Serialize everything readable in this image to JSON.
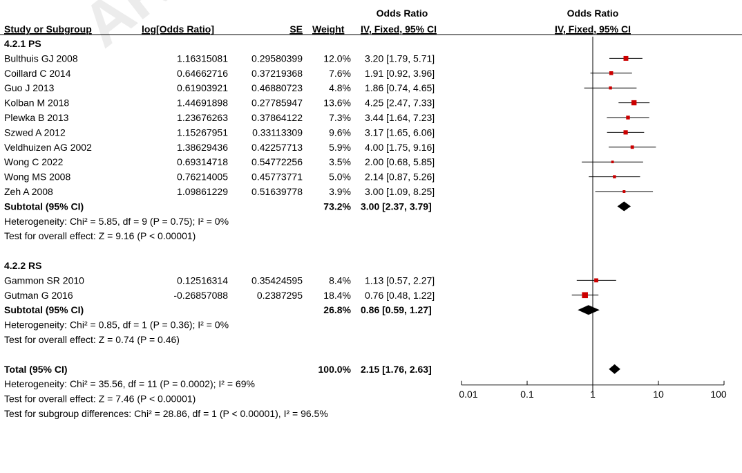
{
  "header": {
    "top_left": "Odds Ratio",
    "top_right": "Odds Ratio",
    "col_study": "Study or Subgroup",
    "col_log": "log[Odds Ratio]",
    "col_se": "SE",
    "col_weight": "Weight",
    "col_ci": "IV, Fixed, 95% CI",
    "col_plot": "IV, Fixed, 95% CI"
  },
  "colors": {
    "point": "#cc0000",
    "diamond": "#000000",
    "line": "#000000",
    "watermark": "#e5e5e5"
  },
  "watermark": "ARTICLE",
  "chart_data": {
    "type": "forest",
    "x_scale": "log",
    "xlim": [
      0.01,
      100
    ],
    "x_ticks": [
      "0.01",
      "0.1",
      "1",
      "10",
      "100"
    ],
    "x_tick_values": [
      0.01,
      0.1,
      1,
      10,
      100
    ],
    "null_line": 1,
    "groups": [
      {
        "title": "4.2.1 PS",
        "studies": [
          {
            "name": "Bulthuis GJ 2008",
            "log_or": "1.16315081",
            "se": "0.29580399",
            "weight": "12.0%",
            "ci_text": "3.20 [1.79, 5.71]",
            "or": 3.2,
            "lower": 1.79,
            "upper": 5.71
          },
          {
            "name": "Coillard C 2014",
            "log_or": "0.64662716",
            "se": "0.37219368",
            "weight": "7.6%",
            "ci_text": "1.91 [0.92, 3.96]",
            "or": 1.91,
            "lower": 0.92,
            "upper": 3.96
          },
          {
            "name": "Guo J 2013",
            "log_or": "0.61903921",
            "se": "0.46880723",
            "weight": "4.8%",
            "ci_text": "1.86 [0.74, 4.65]",
            "or": 1.86,
            "lower": 0.74,
            "upper": 4.65
          },
          {
            "name": "Kolban M 2018",
            "log_or": "1.44691898",
            "se": "0.27785947",
            "weight": "13.6%",
            "ci_text": "4.25 [2.47, 7.33]",
            "or": 4.25,
            "lower": 2.47,
            "upper": 7.33
          },
          {
            "name": "Plewka B 2013",
            "log_or": "1.23676263",
            "se": "0.37864122",
            "weight": "7.3%",
            "ci_text": "3.44 [1.64, 7.23]",
            "or": 3.44,
            "lower": 1.64,
            "upper": 7.23
          },
          {
            "name": "Szwed A 2012",
            "log_or": "1.15267951",
            "se": "0.33113309",
            "weight": "9.6%",
            "ci_text": "3.17 [1.65, 6.06]",
            "or": 3.17,
            "lower": 1.65,
            "upper": 6.06
          },
          {
            "name": "Veldhuizen AG 2002",
            "log_or": "1.38629436",
            "se": "0.42257713",
            "weight": "5.9%",
            "ci_text": "4.00 [1.75, 9.16]",
            "or": 4.0,
            "lower": 1.75,
            "upper": 9.16
          },
          {
            "name": "Wong C 2022",
            "log_or": "0.69314718",
            "se": "0.54772256",
            "weight": "3.5%",
            "ci_text": "2.00 [0.68, 5.85]",
            "or": 2.0,
            "lower": 0.68,
            "upper": 5.85
          },
          {
            "name": "Wong MS 2008",
            "log_or": "0.76214005",
            "se": "0.45773771",
            "weight": "5.0%",
            "ci_text": "2.14 [0.87, 5.26]",
            "or": 2.14,
            "lower": 0.87,
            "upper": 5.26
          },
          {
            "name": "Zeh A 2008",
            "log_or": "1.09861229",
            "se": "0.51639778",
            "weight": "3.9%",
            "ci_text": "3.00 [1.09, 8.25]",
            "or": 3.0,
            "lower": 1.09,
            "upper": 8.25
          }
        ],
        "subtotal": {
          "label": "Subtotal (95% CI)",
          "weight": "73.2%",
          "ci_text": "3.00 [2.37, 3.79]",
          "or": 3.0,
          "lower": 2.37,
          "upper": 3.79
        },
        "heterogeneity": "Heterogeneity: Chi² = 5.85, df = 9 (P = 0.75); I² = 0%",
        "overall": "Test for overall effect: Z = 9.16 (P < 0.00001)"
      },
      {
        "title": "4.2.2 RS",
        "studies": [
          {
            "name": "Gammon SR 2010",
            "log_or": "0.12516314",
            "se": "0.35424595",
            "weight": "8.4%",
            "ci_text": "1.13 [0.57, 2.27]",
            "or": 1.13,
            "lower": 0.57,
            "upper": 2.27
          },
          {
            "name": "Gutman G 2016",
            "log_or": "-0.26857088",
            "se": "0.2387295",
            "weight": "18.4%",
            "ci_text": "0.76 [0.48, 1.22]",
            "or": 0.76,
            "lower": 0.48,
            "upper": 1.22
          }
        ],
        "subtotal": {
          "label": "Subtotal (95% CI)",
          "weight": "26.8%",
          "ci_text": "0.86 [0.59, 1.27]",
          "or": 0.86,
          "lower": 0.59,
          "upper": 1.27
        },
        "heterogeneity": "Heterogeneity: Chi² = 0.85, df = 1 (P = 0.36); I² = 0%",
        "overall": "Test for overall effect: Z = 0.74 (P = 0.46)"
      }
    ],
    "total": {
      "label": "Total (95% CI)",
      "weight": "100.0%",
      "ci_text": "2.15 [1.76, 2.63]",
      "or": 2.15,
      "lower": 1.76,
      "upper": 2.63
    },
    "footer": [
      "Heterogeneity: Chi² = 35.56, df = 11 (P = 0.0002); I² = 69%",
      "Test for overall effect: Z = 7.46 (P < 0.00001)",
      "Test for subgroup differences: Chi² = 28.86, df = 1 (P < 0.00001), I² = 96.5%"
    ]
  }
}
